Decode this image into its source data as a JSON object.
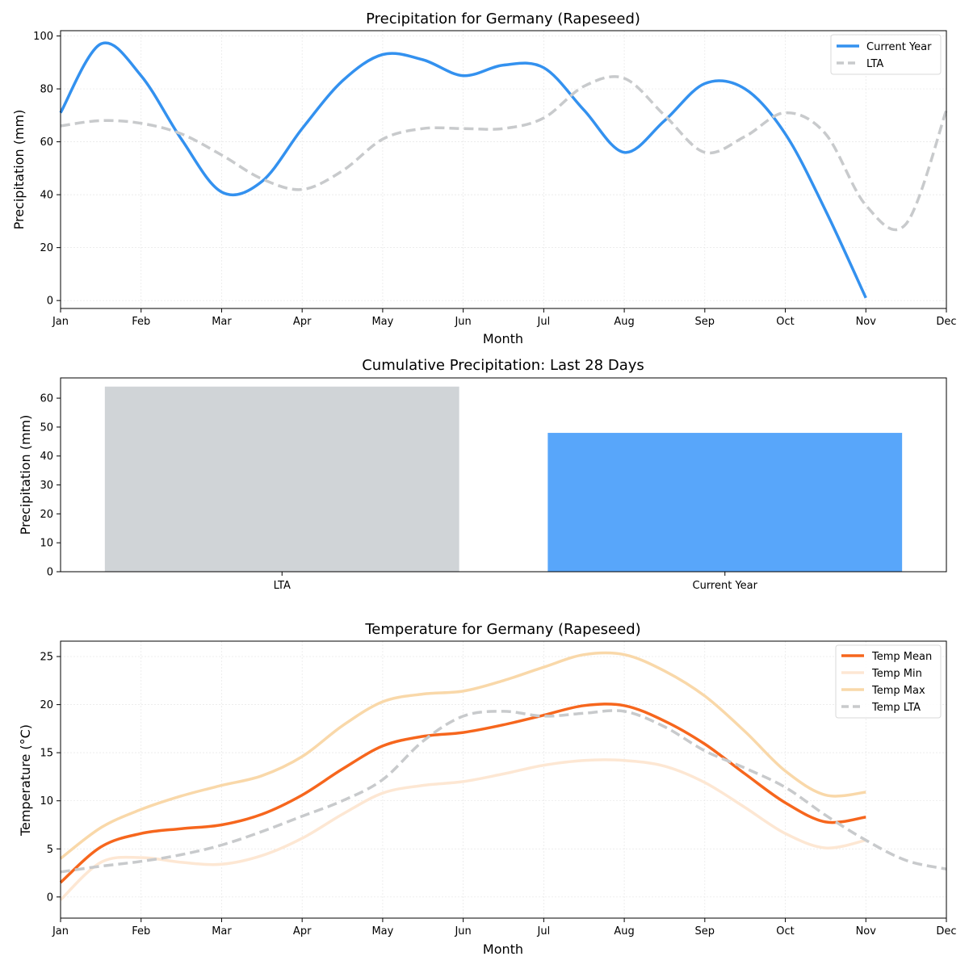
{
  "chart_data": [
    {
      "type": "line",
      "title": "Precipitation for Germany (Rapeseed)",
      "xlabel": "Month",
      "ylabel": "Precipitation (mm)",
      "xticks": [
        "Jan",
        "Feb",
        "Mar",
        "Apr",
        "May",
        "Jun",
        "Jul",
        "Aug",
        "Sep",
        "Oct",
        "Nov",
        "Dec"
      ],
      "yticks": [
        0,
        20,
        40,
        60,
        80,
        100
      ],
      "xlim": [
        "Jan",
        "Dec"
      ],
      "ylim": [
        -3,
        102
      ],
      "grid": true,
      "legend": "top-right",
      "series": [
        {
          "name": "Current Year",
          "color": "#3391ef",
          "style": "solid",
          "x": [
            "Jan",
            "Jan-15",
            "Feb",
            "Feb-15",
            "Mar",
            "Mar-15",
            "Apr",
            "Apr-15",
            "May",
            "May-15",
            "Jun",
            "Jun-15",
            "Jul",
            "Jul-15",
            "Aug",
            "Aug-15",
            "Sep",
            "Sep-15",
            "Oct",
            "Oct-15",
            "Nov"
          ],
          "values": [
            71,
            97,
            85,
            61,
            41,
            45,
            65,
            83,
            93,
            91,
            85,
            89,
            88,
            72,
            56,
            68,
            82,
            80,
            63,
            34,
            1
          ]
        },
        {
          "name": "LTA",
          "color": "#c8cacc",
          "style": "dashed",
          "x": [
            "Jan",
            "Jan-15",
            "Feb",
            "Feb-15",
            "Mar",
            "Mar-15",
            "Apr",
            "Apr-15",
            "May",
            "May-15",
            "Jun",
            "Jun-15",
            "Jul",
            "Jul-15",
            "Aug",
            "Aug-15",
            "Sep",
            "Sep-15",
            "Oct",
            "Oct-15",
            "Nov",
            "Nov-15",
            "Dec"
          ],
          "values": [
            66,
            68,
            67,
            63,
            55,
            46,
            42,
            49,
            61,
            65,
            65,
            65,
            69,
            81,
            84,
            70,
            56,
            62,
            71,
            63,
            36,
            29,
            72
          ]
        }
      ]
    },
    {
      "type": "bar",
      "title": "Cumulative Precipitation: Last 28 Days",
      "xlabel": "",
      "ylabel": "Precipitation (mm)",
      "categories": [
        "LTA",
        "Current Year"
      ],
      "values": [
        64,
        48
      ],
      "colors": [
        "#d0d4d7",
        "#58a6fa"
      ],
      "yticks": [
        0,
        10,
        20,
        30,
        40,
        50,
        60
      ],
      "ylim": [
        0,
        67
      ],
      "grid": false
    },
    {
      "type": "line",
      "title": "Temperature for Germany (Rapeseed)",
      "xlabel": "Month",
      "ylabel": "Temperature (°C)",
      "xticks": [
        "Jan",
        "Feb",
        "Mar",
        "Apr",
        "May",
        "Jun",
        "Jul",
        "Aug",
        "Sep",
        "Oct",
        "Nov",
        "Dec"
      ],
      "yticks": [
        0,
        5,
        10,
        15,
        20,
        25
      ],
      "xlim": [
        "Jan",
        "Dec"
      ],
      "ylim": [
        -2.2,
        26.6
      ],
      "grid": true,
      "legend": "top-right",
      "series": [
        {
          "name": "Temp Mean",
          "color": "#f6661d",
          "style": "solid",
          "x": [
            "Jan",
            "Jan-15",
            "Feb",
            "Feb-15",
            "Mar",
            "Mar-15",
            "Apr",
            "Apr-15",
            "May",
            "May-15",
            "Jun",
            "Jun-15",
            "Jul",
            "Jul-15",
            "Aug",
            "Aug-15",
            "Sep",
            "Sep-15",
            "Oct",
            "Oct-15",
            "Nov"
          ],
          "values": [
            1.5,
            5.2,
            6.6,
            7.1,
            7.5,
            8.6,
            10.6,
            13.3,
            15.7,
            16.7,
            17.1,
            17.9,
            18.9,
            19.9,
            19.9,
            18.3,
            15.9,
            12.8,
            9.8,
            7.8,
            8.3
          ]
        },
        {
          "name": "Temp Min",
          "color": "#fde7d3",
          "style": "solid",
          "x": [
            "Jan",
            "Jan-15",
            "Feb",
            "Feb-15",
            "Mar",
            "Mar-15",
            "Apr",
            "Apr-15",
            "May",
            "May-15",
            "Jun",
            "Jun-15",
            "Jul",
            "Jul-15",
            "Aug",
            "Aug-15",
            "Sep",
            "Sep-15",
            "Oct",
            "Oct-15",
            "Nov"
          ],
          "values": [
            -0.3,
            3.6,
            4.1,
            3.6,
            3.4,
            4.3,
            6.1,
            8.6,
            10.8,
            11.6,
            12.0,
            12.8,
            13.7,
            14.2,
            14.2,
            13.6,
            11.9,
            9.3,
            6.6,
            5.1,
            5.9
          ]
        },
        {
          "name": "Temp Max",
          "color": "#f9d8a9",
          "style": "solid",
          "x": [
            "Jan",
            "Jan-15",
            "Feb",
            "Feb-15",
            "Mar",
            "Mar-15",
            "Apr",
            "Apr-15",
            "May",
            "May-15",
            "Jun",
            "Jun-15",
            "Jul",
            "Jul-15",
            "Aug",
            "Aug-15",
            "Sep",
            "Sep-15",
            "Oct",
            "Oct-15",
            "Nov"
          ],
          "values": [
            4.0,
            7.2,
            9.1,
            10.5,
            11.6,
            12.6,
            14.6,
            17.8,
            20.3,
            21.1,
            21.4,
            22.5,
            23.9,
            25.2,
            25.2,
            23.5,
            20.9,
            17.2,
            13.1,
            10.6,
            10.9
          ]
        },
        {
          "name": "Temp LTA",
          "color": "#c8cacc",
          "style": "dashed",
          "x": [
            "Jan",
            "Jan-15",
            "Feb",
            "Feb-15",
            "Mar",
            "Mar-15",
            "Apr",
            "Apr-15",
            "May",
            "May-15",
            "Jun",
            "Jun-15",
            "Jul",
            "Jul-15",
            "Aug",
            "Aug-15",
            "Sep",
            "Sep-15",
            "Oct",
            "Oct-15",
            "Nov",
            "Nov-15",
            "Dec"
          ],
          "values": [
            2.6,
            3.2,
            3.7,
            4.4,
            5.4,
            6.8,
            8.4,
            10.0,
            12.2,
            16.2,
            18.8,
            19.3,
            18.8,
            19.1,
            19.3,
            17.7,
            15.2,
            13.4,
            11.4,
            8.5,
            5.9,
            3.8,
            2.9
          ]
        }
      ]
    }
  ]
}
